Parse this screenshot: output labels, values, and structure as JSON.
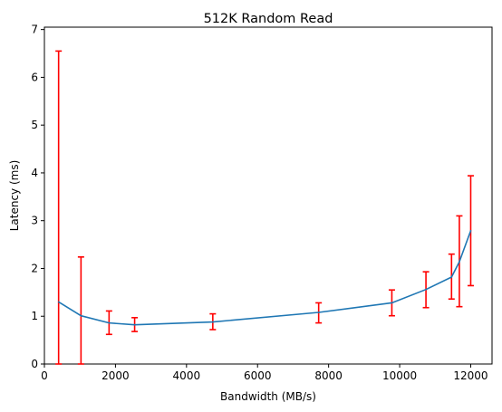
{
  "chart_data": {
    "type": "line",
    "title": "512K  Random Read",
    "xlabel": "Bandwidth (MB/s)",
    "ylabel": "Latency (ms)",
    "xlim": [
      0,
      12600
    ],
    "ylim": [
      0,
      7.05
    ],
    "xticks": [
      0,
      2000,
      4000,
      6000,
      8000,
      10000,
      12000
    ],
    "yticks": [
      0,
      1,
      2,
      3,
      4,
      5,
      6,
      7
    ],
    "grid": false,
    "line_color": "#1f77b4",
    "error_color": "#ff0000",
    "series": [
      {
        "x": [
          400,
          1030,
          1820,
          2540,
          4740,
          7720,
          9780,
          10740,
          11460,
          11680,
          12000
        ],
        "y": [
          1.3,
          1.01,
          0.86,
          0.82,
          0.88,
          1.08,
          1.28,
          1.56,
          1.82,
          2.14,
          2.79
        ],
        "yerr_low": [
          0.0,
          0.0,
          0.62,
          0.68,
          0.72,
          0.86,
          1.01,
          1.18,
          1.36,
          1.2,
          1.64
        ],
        "yerr_high": [
          6.55,
          2.24,
          1.11,
          0.97,
          1.05,
          1.28,
          1.55,
          1.93,
          2.3,
          3.1,
          3.94
        ]
      }
    ]
  }
}
